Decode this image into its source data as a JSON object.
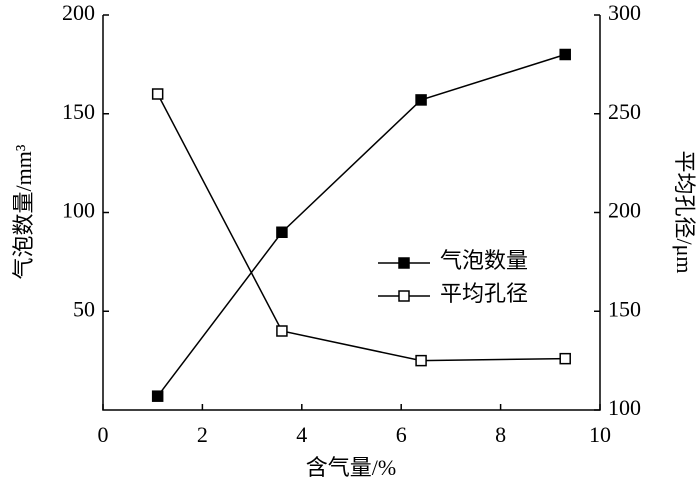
{
  "chart_data": {
    "type": "line",
    "xlabel": "含气量/%",
    "ylabel": "气泡数量/mm³",
    "y2label": "平均孔径/μm",
    "x": [
      1.1,
      3.6,
      6.4,
      9.3
    ],
    "xlim": [
      0,
      10
    ],
    "xticks": [
      0,
      2,
      4,
      6,
      8,
      10
    ],
    "ylim": [
      0,
      200
    ],
    "yticks": [
      50,
      100,
      150,
      200
    ],
    "y2lim": [
      100,
      300
    ],
    "y2ticks": [
      100,
      150,
      200,
      250,
      300
    ],
    "grid": false,
    "legend": "right",
    "series": [
      {
        "name": "气泡数量",
        "color": "#000000",
        "marker": "filled-square",
        "values": [
          7,
          90,
          157,
          180
        ]
      },
      {
        "name": "平均孔径",
        "color": "#000000",
        "marker": "open-square",
        "axis": "y2",
        "values": [
          260,
          140,
          125,
          126
        ]
      }
    ]
  }
}
